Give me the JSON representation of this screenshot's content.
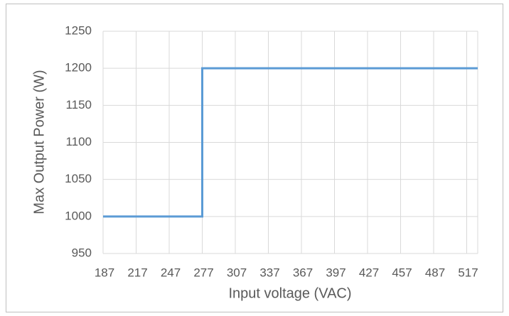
{
  "chart_data": {
    "type": "line",
    "x_label": "Input voltage (VAC)",
    "y_label": "Max Output Power (W)",
    "x": [
      187,
      277,
      277,
      527
    ],
    "values": [
      1000,
      1000,
      1200,
      1200
    ],
    "color": "#5b9bd5",
    "xlim": [
      187,
      527
    ],
    "xticks": [
      187,
      217,
      247,
      277,
      307,
      337,
      367,
      397,
      427,
      457,
      487,
      517
    ],
    "ylim": [
      950,
      1250
    ],
    "yticks": [
      950,
      1000,
      1050,
      1100,
      1150,
      1200,
      1250
    ],
    "grid": true
  }
}
